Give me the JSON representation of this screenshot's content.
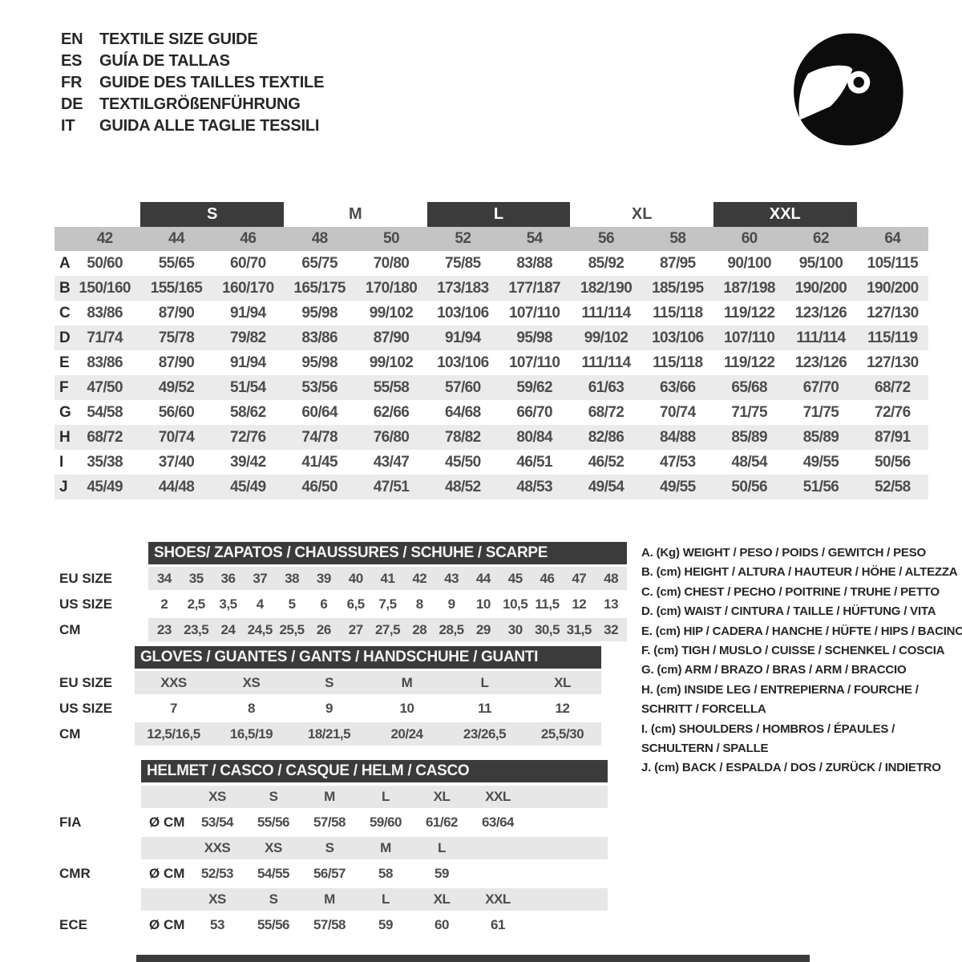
{
  "header": {
    "languages": [
      {
        "code": "EN",
        "title": "TEXTILE SIZE GUIDE"
      },
      {
        "code": "ES",
        "title": "GUÍA DE TALLAS"
      },
      {
        "code": "FR",
        "title": "GUIDE DES TAILLES TEXTILE"
      },
      {
        "code": "DE",
        "title": "TEXTILGRÖßENFÜHRUNG"
      },
      {
        "code": "IT",
        "title": "GUIDA ALLE TAGLIE TESSILI"
      }
    ],
    "icon": "racing-helmet-icon"
  },
  "colors": {
    "dark_bar": "#3b3b3b",
    "size_bar": "#c4c4c4",
    "row_stripe": "#ebebeb",
    "sub_band": "#e7e7e7",
    "text": "#454545",
    "icon_black": "#0c0c0c"
  },
  "main_table": {
    "group_labels": [
      "S",
      "M",
      "L",
      "XL",
      "XXL"
    ],
    "sizes": [
      "42",
      "44",
      "46",
      "48",
      "50",
      "52",
      "54",
      "56",
      "58",
      "60",
      "62",
      "64"
    ],
    "rows": [
      {
        "label": "A",
        "values": [
          "50/60",
          "55/65",
          "60/70",
          "65/75",
          "70/80",
          "75/85",
          "83/88",
          "85/92",
          "87/95",
          "90/100",
          "95/100",
          "105/115"
        ]
      },
      {
        "label": "B",
        "values": [
          "150/160",
          "155/165",
          "160/170",
          "165/175",
          "170/180",
          "173/183",
          "177/187",
          "182/190",
          "185/195",
          "187/198",
          "190/200",
          "190/200"
        ]
      },
      {
        "label": "C",
        "values": [
          "83/86",
          "87/90",
          "91/94",
          "95/98",
          "99/102",
          "103/106",
          "107/110",
          "111/114",
          "115/118",
          "119/122",
          "123/126",
          "127/130"
        ]
      },
      {
        "label": "D",
        "values": [
          "71/74",
          "75/78",
          "79/82",
          "83/86",
          "87/90",
          "91/94",
          "95/98",
          "99/102",
          "103/106",
          "107/110",
          "111/114",
          "115/119"
        ]
      },
      {
        "label": "E",
        "values": [
          "83/86",
          "87/90",
          "91/94",
          "95/98",
          "99/102",
          "103/106",
          "107/110",
          "111/114",
          "115/118",
          "119/122",
          "123/126",
          "127/130"
        ]
      },
      {
        "label": "F",
        "values": [
          "47/50",
          "49/52",
          "51/54",
          "53/56",
          "55/58",
          "57/60",
          "59/62",
          "61/63",
          "63/66",
          "65/68",
          "67/70",
          "68/72"
        ]
      },
      {
        "label": "G",
        "values": [
          "54/58",
          "56/60",
          "58/62",
          "60/64",
          "62/66",
          "64/68",
          "66/70",
          "68/72",
          "70/74",
          "71/75",
          "71/75",
          "72/76"
        ]
      },
      {
        "label": "H",
        "values": [
          "68/72",
          "70/74",
          "72/76",
          "74/78",
          "76/80",
          "78/82",
          "80/84",
          "82/86",
          "84/88",
          "85/89",
          "85/89",
          "87/91"
        ]
      },
      {
        "label": "I",
        "values": [
          "35/38",
          "37/40",
          "39/42",
          "41/45",
          "43/47",
          "45/50",
          "46/51",
          "46/52",
          "47/53",
          "48/54",
          "49/55",
          "50/56"
        ]
      },
      {
        "label": "J",
        "values": [
          "45/49",
          "44/48",
          "45/49",
          "46/50",
          "47/51",
          "48/52",
          "48/53",
          "49/54",
          "49/55",
          "50/56",
          "51/56",
          "52/58"
        ]
      }
    ]
  },
  "shoes": {
    "title": "SHOES/ ZAPATOS / CHAUSSURES / SCHUHE / SCARPE",
    "row_labels": [
      "EU SIZE",
      "US SIZE",
      "CM"
    ],
    "eu": [
      "34",
      "35",
      "36",
      "37",
      "38",
      "39",
      "40",
      "41",
      "42",
      "43",
      "44",
      "45",
      "46",
      "47",
      "48"
    ],
    "us": [
      "2",
      "2,5",
      "3,5",
      "4",
      "5",
      "6",
      "6,5",
      "7,5",
      "8",
      "9",
      "10",
      "10,5",
      "11,5",
      "12",
      "13"
    ],
    "cm": [
      "23",
      "23,5",
      "24",
      "24,5",
      "25,5",
      "26",
      "27",
      "27,5",
      "28",
      "28,5",
      "29",
      "30",
      "30,5",
      "31,5",
      "32"
    ]
  },
  "gloves": {
    "title": "GLOVES / GUANTES / GANTS / HANDSCHUHE / GUANTI",
    "row_labels": [
      "EU SIZE",
      "US SIZE",
      "CM"
    ],
    "eu": [
      "XXS",
      "XS",
      "S",
      "M",
      "L",
      "XL"
    ],
    "us": [
      "7",
      "8",
      "9",
      "10",
      "11",
      "12"
    ],
    "cm": [
      "12,5/16,5",
      "16,5/19",
      "18/21,5",
      "20/24",
      "23/26,5",
      "25,5/30"
    ]
  },
  "helmet": {
    "title": "HELMET / CASCO / CASQUE / HELM / CASCO",
    "diameter_label": "Ø CM",
    "standards": [
      {
        "label": "FIA",
        "sizes": [
          "XS",
          "S",
          "M",
          "L",
          "XL",
          "XXL"
        ],
        "values": [
          "53/54",
          "55/56",
          "57/58",
          "59/60",
          "61/62",
          "63/64"
        ]
      },
      {
        "label": "CMR",
        "sizes": [
          "XXS",
          "XS",
          "S",
          "M",
          "L"
        ],
        "values": [
          "52/53",
          "54/55",
          "56/57",
          "58",
          "59"
        ]
      },
      {
        "label": "ECE",
        "sizes": [
          "XS",
          "S",
          "M",
          "L",
          "XL",
          "XXL"
        ],
        "values": [
          "53",
          "55/56",
          "57/58",
          "59",
          "60",
          "61"
        ]
      }
    ]
  },
  "legend": {
    "items": [
      {
        "key": "A.",
        "unit": "(Kg)",
        "text": "WEIGHT / PESO / POIDS / GEWITCH / PESO"
      },
      {
        "key": "B.",
        "unit": "(cm)",
        "text": "HEIGHT / ALTURA / HAUTEUR / HÖHE / ALTEZZA"
      },
      {
        "key": "C.",
        "unit": "(cm)",
        "text": "CHEST / PECHO / POITRINE / TRUHE / PETTO"
      },
      {
        "key": "D.",
        "unit": "(cm)",
        "text": "WAIST / CINTURA / TAILLE / HÜFTUNG / VITA"
      },
      {
        "key": "E.",
        "unit": "(cm)",
        "text": "HIP / CADERA / HANCHE / HÜFTE / HIPS / BACINO"
      },
      {
        "key": "F.",
        "unit": "(cm)",
        "text": "TIGH / MUSLO / CUISSE / SCHENKEL / COSCIA"
      },
      {
        "key": "G.",
        "unit": "(cm)",
        "text": "ARM / BRAZO / BRAS / ARM / BRACCIO"
      },
      {
        "key": "H.",
        "unit": "(cm)",
        "text": "INSIDE LEG / ENTREPIERNA / FOURCHE / SCHRITT / FORCELLA"
      },
      {
        "key": "I.",
        "unit": "(cm)",
        "text": "SHOULDERS / HOMBROS / ÉPAULES / SCHULTERN / SPALLE"
      },
      {
        "key": "J.",
        "unit": "(cm)",
        "text": "BACK / ESPALDA / DOS / ZURÜCK / INDIETRO"
      }
    ]
  }
}
